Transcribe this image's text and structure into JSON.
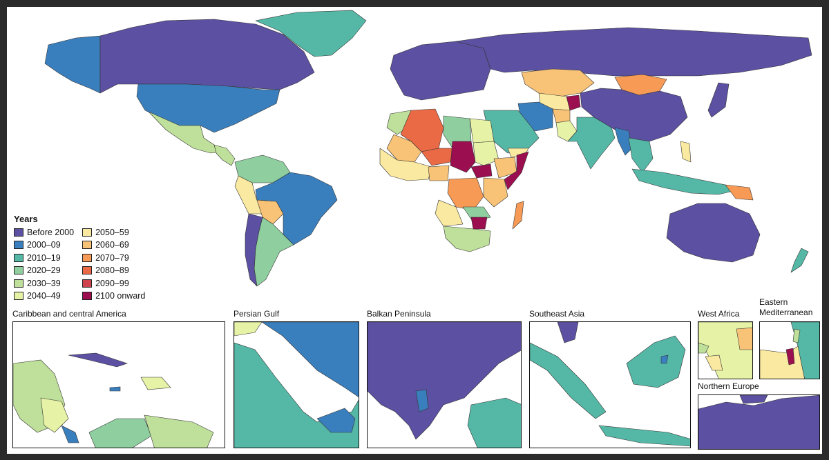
{
  "colors": {
    "before_2000": "#5b50a1",
    "y2000_09": "#3a7fbd",
    "y2010_19": "#55b8a6",
    "y2020_29": "#8fcf9f",
    "y2030_39": "#bfe09a",
    "y2040_49": "#e6f2a5",
    "y2050_59": "#fae9a0",
    "y2060_69": "#f8c376",
    "y2070_79": "#f69a55",
    "y2080_89": "#ea6a45",
    "y2090_99": "#d1424f",
    "y2100_onward": "#9b0e4f",
    "ocean": "#ffffff",
    "outline": "#333333"
  },
  "legend": {
    "title": "Years",
    "items": [
      {
        "label": "Before 2000",
        "key": "before_2000"
      },
      {
        "label": "2000–09",
        "key": "y2000_09"
      },
      {
        "label": "2010–19",
        "key": "y2010_19"
      },
      {
        "label": "2020–29",
        "key": "y2020_29"
      },
      {
        "label": "2030–39",
        "key": "y2030_39"
      },
      {
        "label": "2040–49",
        "key": "y2040_49"
      },
      {
        "label": "2050–59",
        "key": "y2050_59"
      },
      {
        "label": "2060–69",
        "key": "y2060_69"
      },
      {
        "label": "2070–79",
        "key": "y2070_79"
      },
      {
        "label": "2080–89",
        "key": "y2080_89"
      },
      {
        "label": "2090–99",
        "key": "y2090_99"
      },
      {
        "label": "2100 onward",
        "key": "y2100_onward"
      }
    ]
  },
  "insets": {
    "caribbean": "Caribbean and central America",
    "persian_gulf": "Persian Gulf",
    "balkan": "Balkan Peninsula",
    "southeast_asia": "Southeast Asia",
    "west_africa": "West Africa",
    "eastern_med": "Eastern\nMediterranean",
    "northern_europe": "Northern Europe"
  }
}
